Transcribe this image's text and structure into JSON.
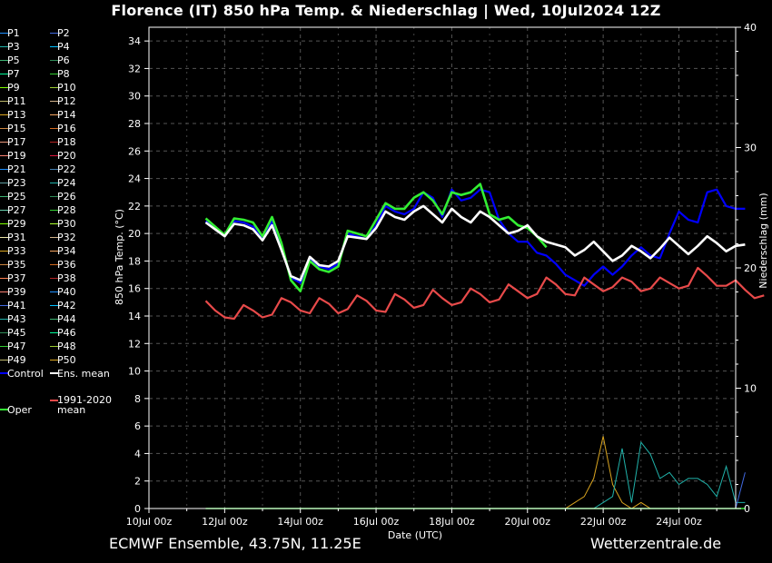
{
  "title": "Florence  (IT)  850 hPa Temp. & Niederschlag | Wed, 10Jul2024 12Z",
  "footer_left": "ECMWF Ensemble, 43.75N, 11.25E",
  "footer_right": "Wetterzentrale.de",
  "chart_data": {
    "type": "line",
    "title": "Florence  (IT)  850 hPa Temp. & Niederschlag | Wed, 10Jul2024 12Z",
    "xlabel": "Date (UTC)",
    "ylabel": "850 hPa Temp. (°C)",
    "y2label": "Niederschlag (mm)",
    "ylim": [
      0,
      35
    ],
    "y2lim": [
      0,
      40
    ],
    "yticks": [
      0,
      2,
      4,
      6,
      8,
      10,
      12,
      14,
      16,
      18,
      20,
      22,
      24,
      26,
      28,
      30,
      32,
      34
    ],
    "y2ticks": [
      0,
      10,
      20,
      30,
      40
    ],
    "x_tick_labels": [
      "10Jul 00z",
      "12Jul 00z",
      "14Jul 00z",
      "16Jul 00z",
      "18Jul 00z",
      "20Jul 00z",
      "22Jul 00z",
      "24Jul 00z"
    ],
    "x_range_hours": [
      0,
      372
    ],
    "x_start_hour": 36,
    "x_step_hours": 6,
    "grid": true,
    "legend_position": "left",
    "legend": [
      "P1",
      "P2",
      "P3",
      "P4",
      "P5",
      "P6",
      "P7",
      "P8",
      "P9",
      "P10",
      "P11",
      "P12",
      "P13",
      "P14",
      "P15",
      "P16",
      "P17",
      "P18",
      "P19",
      "P20",
      "P21",
      "P22",
      "P23",
      "P24",
      "P25",
      "P26",
      "P27",
      "P28",
      "P29",
      "P30",
      "P31",
      "P32",
      "P33",
      "P34",
      "P35",
      "P36",
      "P37",
      "P38",
      "P39",
      "P40",
      "P41",
      "P42",
      "P43",
      "P44",
      "P45",
      "P46",
      "P47",
      "P48",
      "P49",
      "P50",
      "Control",
      "Ens. mean",
      "1991-2020 mean",
      "Oper"
    ],
    "legend_colors": [
      "#1e90ff",
      "#4169e1",
      "#20b2aa",
      "#00bfff",
      "#3cb371",
      "#2e8b57",
      "#00fa9a",
      "#32cd32",
      "#7cfc00",
      "#9acd32",
      "#bdb76b",
      "#d2b48c",
      "#daa520",
      "#f4a460",
      "#cd853f",
      "#d2691e",
      "#e9967a",
      "#b22222",
      "#fa8072",
      "#dc143c",
      "#1e90ff",
      "#4682b4",
      "#5f9ea0",
      "#20b2aa",
      "#3cb371",
      "#2e8b57",
      "#66cdaa",
      "#32cd32",
      "#7fff00",
      "#adff2f",
      "#eee8aa",
      "#d2b48c",
      "#daa520",
      "#f4a460",
      "#cd853f",
      "#d2691e",
      "#ff7f50",
      "#b22222",
      "#fa8072",
      "#1e90ff",
      "#4169e1",
      "#00bfff",
      "#20b2aa",
      "#3cb371",
      "#2e8b57",
      "#00fa9a",
      "#32cd32",
      "#9acd32",
      "#bdb76b",
      "#daa520",
      "#0000ff",
      "#ffffff",
      "#e84a4a",
      "#33ee33"
    ],
    "series": [
      {
        "name": "Control",
        "color": "#0000ff",
        "values": [
          20.9,
          20.3,
          19.8,
          20.9,
          20.8,
          20.5,
          19.6,
          20.9,
          19.0,
          16.8,
          16.4,
          18.2,
          17.6,
          17.4,
          17.8,
          20.0,
          19.8,
          19.6,
          20.6,
          22.0,
          21.6,
          21.4,
          21.8,
          23.0,
          22.6,
          21.2,
          23.2,
          22.4,
          22.6,
          23.2,
          23.0,
          21.0,
          20.0,
          19.4,
          19.4,
          18.6,
          18.4,
          17.8,
          17.0,
          16.6,
          16.2,
          17.0,
          17.6,
          17.0,
          17.6,
          18.4,
          19.0,
          18.4,
          18.2,
          20.0,
          21.6,
          21.0,
          20.8,
          23.0,
          23.2,
          22.0,
          21.8,
          21.8
        ]
      },
      {
        "name": "Oper",
        "color": "#33ee33",
        "values": [
          21.1,
          20.5,
          19.9,
          21.1,
          21.0,
          20.8,
          19.8,
          21.2,
          19.3,
          16.6,
          15.8,
          18.0,
          17.4,
          17.2,
          17.6,
          20.2,
          20.0,
          19.8,
          21.0,
          22.2,
          21.8,
          21.8,
          22.6,
          23.0,
          22.4,
          21.4,
          23.0,
          22.8,
          23.0,
          23.6,
          21.4,
          21.0,
          21.2,
          20.6,
          20.4,
          19.8,
          19.0
        ]
      },
      {
        "name": "Ens. mean",
        "color": "#ffffff",
        "values": [
          20.8,
          20.3,
          19.8,
          20.7,
          20.6,
          20.3,
          19.5,
          20.6,
          18.8,
          16.9,
          16.6,
          18.3,
          17.7,
          17.6,
          18.0,
          19.8,
          19.7,
          19.6,
          20.4,
          21.6,
          21.2,
          21.0,
          21.6,
          22.0,
          21.4,
          20.8,
          21.8,
          21.2,
          20.8,
          21.6,
          21.2,
          20.6,
          20.0,
          20.2,
          20.6,
          19.8,
          19.4,
          19.2,
          19.0,
          18.4,
          18.8,
          19.4,
          18.7,
          18.0,
          18.4,
          19.1,
          18.7,
          18.2,
          18.9,
          19.7,
          19.1,
          18.5,
          19.1,
          19.8,
          19.3,
          18.7,
          19.1,
          19.2
        ]
      },
      {
        "name": "1991-2020 mean",
        "color": "#e84a4a",
        "values": [
          15.1,
          14.4,
          13.9,
          13.8,
          14.8,
          14.4,
          13.9,
          14.1,
          15.3,
          15.0,
          14.4,
          14.2,
          15.3,
          14.9,
          14.2,
          14.5,
          15.5,
          15.1,
          14.4,
          14.3,
          15.6,
          15.2,
          14.6,
          14.8,
          15.9,
          15.3,
          14.8,
          15.0,
          16.0,
          15.6,
          15.0,
          15.2,
          16.3,
          15.8,
          15.3,
          15.6,
          16.8,
          16.3,
          15.6,
          15.5,
          16.8,
          16.3,
          15.8,
          16.1,
          16.8,
          16.5,
          15.8,
          16.0,
          16.8,
          16.4,
          16.0,
          16.2,
          17.5,
          16.9,
          16.2,
          16.2,
          16.6,
          15.9,
          15.3,
          15.5
        ]
      }
    ],
    "precip_series": [
      {
        "name": "P27",
        "color": "#daa520",
        "values": [
          0,
          0,
          0,
          0,
          0,
          0,
          0,
          0,
          0,
          0,
          0,
          0,
          0,
          0,
          0,
          0,
          0,
          0,
          0,
          0,
          0,
          0,
          0,
          0,
          0,
          0,
          0,
          0,
          0,
          0,
          0,
          0,
          0,
          0,
          0,
          0,
          0,
          0,
          0,
          0.5,
          1.0,
          2.5,
          6.0,
          2.0,
          0.5,
          0,
          0.5,
          0,
          0,
          0,
          0,
          0,
          0,
          0,
          0,
          0,
          0,
          0
        ]
      },
      {
        "name": "P22",
        "color": "#20b2aa",
        "values": [
          0,
          0,
          0,
          0,
          0,
          0,
          0,
          0,
          0,
          0,
          0,
          0,
          0,
          0,
          0,
          0,
          0,
          0,
          0,
          0,
          0,
          0,
          0,
          0,
          0,
          0,
          0,
          0,
          0,
          0,
          0,
          0,
          0,
          0,
          0,
          0,
          0,
          0,
          0,
          0,
          0,
          0,
          0.5,
          1.0,
          5.0,
          0.5,
          5.5,
          4.5,
          2.5,
          3.0,
          2.0,
          2.5,
          2.5,
          2.0,
          1.0,
          3.5,
          0.5,
          0.5
        ]
      },
      {
        "name": "P34",
        "color": "#4169e1",
        "values": [
          0,
          0,
          0,
          0,
          0,
          0,
          0,
          0,
          0,
          0,
          0,
          0,
          0,
          0,
          0,
          0,
          0,
          0,
          0,
          0,
          0,
          0,
          0,
          0,
          0,
          0,
          0,
          0,
          0,
          0,
          0,
          0,
          0,
          0,
          0,
          0,
          0,
          0,
          0,
          0,
          0,
          0,
          0,
          0,
          0,
          0,
          0,
          0,
          0,
          0,
          0,
          0,
          0,
          0,
          0,
          0,
          0,
          3.0
        ]
      }
    ]
  }
}
